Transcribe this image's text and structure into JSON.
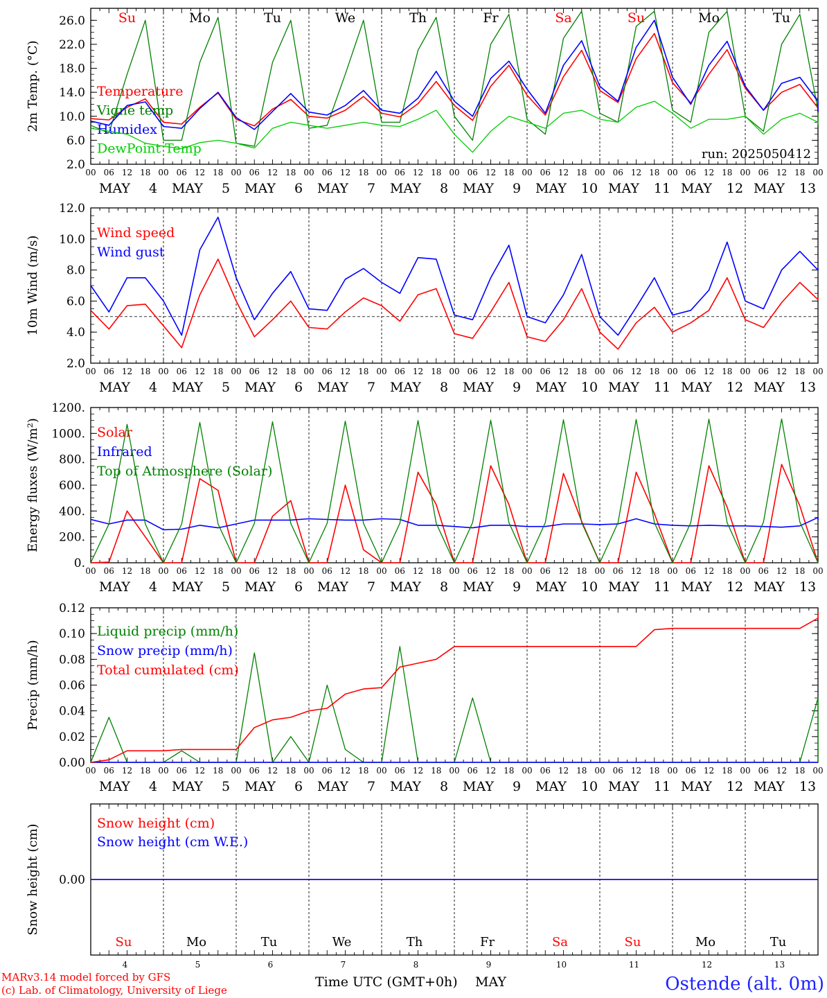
{
  "days": [
    {
      "dow": "Su",
      "month": "MAY",
      "day": "4",
      "weekend": true
    },
    {
      "dow": "Mo",
      "month": "MAY",
      "day": "5",
      "weekend": false
    },
    {
      "dow": "Tu",
      "month": "MAY",
      "day": "6",
      "weekend": false
    },
    {
      "dow": "We",
      "month": "MAY",
      "day": "7",
      "weekend": false
    },
    {
      "dow": "Th",
      "month": "MAY",
      "day": "8",
      "weekend": false
    },
    {
      "dow": "Fr",
      "month": "MAY",
      "day": "9",
      "weekend": false
    },
    {
      "dow": "Sa",
      "month": "MAY",
      "day": "10",
      "weekend": true
    },
    {
      "dow": "Su",
      "month": "MAY",
      "day": "11",
      "weekend": true
    },
    {
      "dow": "Mo",
      "month": "MAY",
      "day": "12",
      "weekend": false
    },
    {
      "dow": "Tu",
      "month": "MAY",
      "day": "13",
      "weekend": false
    }
  ],
  "hour_ticks": [
    "00",
    "06",
    "12",
    "18"
  ],
  "last_hour_tick": "00",
  "colors": {
    "red": "#ff0000",
    "blue": "#0000ff",
    "green": "#008000",
    "light_green": "#00cc00",
    "grid": "#000000",
    "title_blue": "#1f22ff"
  },
  "footer": {
    "model_line": "MARv3.14 model forced by GFS",
    "credit_line": "(c) Lab. of Climatology, University of Liege",
    "xlabel": "Time UTC (GMT+0h)",
    "month": "MAY",
    "station": "Ostende (alt. 0m)"
  },
  "chart_data": [
    {
      "id": "temp",
      "type": "line",
      "ylabel": "2m Temp. (°C)",
      "ylim": [
        2,
        28
      ],
      "yticks": [
        "2.0",
        "6.0",
        "10.0",
        "14.0",
        "18.0",
        "22.0",
        "26.0"
      ],
      "annotation": "run: 2025050412",
      "series": [
        {
          "name": "Temperature",
          "color": "red",
          "step_hours": 6,
          "values": [
            9.6,
            9.4,
            11.5,
            12.9,
            9.0,
            8.7,
            11.5,
            13.9,
            9.5,
            8.4,
            11.2,
            12.8,
            10.0,
            9.7,
            11.0,
            13.3,
            10.5,
            9.9,
            12.1,
            15.8,
            11.8,
            9.3,
            15.0,
            18.5,
            13.5,
            10.2,
            16.6,
            21.0,
            14.3,
            12.3,
            19.6,
            23.8,
            15.6,
            12.2,
            17.0,
            21.1,
            14.7,
            11.0,
            14.0,
            15.3,
            11.4,
            10.4
          ]
        },
        {
          "name": "Vigne temp",
          "color": "green",
          "step_hours": 6,
          "values": [
            8.5,
            7.2,
            17.0,
            26.0,
            6.0,
            6.0,
            19.0,
            26.5,
            5.5,
            5.0,
            19.0,
            26.0,
            8.0,
            8.5,
            17.0,
            26.0,
            9.0,
            9.0,
            21.0,
            26.5,
            10.0,
            6.0,
            22.0,
            27.0,
            9.5,
            7.0,
            23.0,
            27.5,
            10.5,
            9.0,
            25.0,
            27.5,
            11.0,
            9.0,
            24.0,
            27.5,
            10.0,
            7.5,
            22.0,
            27.0,
            11.0,
            8.5
          ]
        },
        {
          "name": "Humidex",
          "color": "blue",
          "step_hours": 6,
          "values": [
            9.2,
            8.5,
            11.8,
            12.4,
            8.3,
            8.0,
            11.3,
            14.0,
            9.8,
            7.8,
            10.8,
            13.8,
            10.7,
            10.2,
            11.8,
            14.3,
            11.0,
            10.5,
            13.0,
            17.5,
            12.5,
            10.0,
            16.3,
            19.2,
            14.5,
            10.5,
            18.5,
            22.6,
            15.0,
            12.5,
            21.5,
            26.0,
            16.5,
            12.0,
            18.5,
            22.5,
            15.0,
            11.0,
            15.5,
            16.5,
            12.5,
            10.7
          ]
        },
        {
          "name": "DewPoint Temp",
          "color": "light_green",
          "step_hours": 6,
          "values": [
            8.0,
            7.5,
            7.0,
            5.5,
            5.0,
            4.6,
            5.6,
            6.0,
            5.5,
            4.7,
            8.0,
            9.0,
            8.5,
            8.0,
            8.5,
            9.0,
            8.5,
            8.3,
            9.5,
            11.0,
            7.0,
            4.0,
            7.5,
            10.0,
            9.0,
            8.0,
            10.5,
            11.0,
            9.5,
            9.0,
            11.5,
            12.5,
            10.5,
            8.0,
            9.5,
            9.5,
            10.0,
            7.0,
            9.5,
            10.5,
            9.0,
            8.7
          ]
        }
      ]
    },
    {
      "id": "wind",
      "type": "line",
      "ylabel": "10m Wind (m/s)",
      "ylim": [
        2,
        12
      ],
      "yticks": [
        "2.0",
        "4.0",
        "6.0",
        "8.0",
        "10.0",
        "12.0"
      ],
      "reference_line": 5.0,
      "series": [
        {
          "name": "Wind speed",
          "color": "red",
          "step_hours": 6,
          "values": [
            5.4,
            4.2,
            5.7,
            5.8,
            4.4,
            3.0,
            6.4,
            8.7,
            6.0,
            3.7,
            4.8,
            6.0,
            4.3,
            4.2,
            5.3,
            6.2,
            5.7,
            4.7,
            6.4,
            6.8,
            3.9,
            3.6,
            5.3,
            7.2,
            3.7,
            3.4,
            4.8,
            6.8,
            4.0,
            2.9,
            4.6,
            5.6,
            4.0,
            4.6,
            5.4,
            7.5,
            4.8,
            4.3,
            5.9,
            7.2,
            6.1,
            6.3
          ]
        },
        {
          "name": "Wind gust",
          "color": "blue",
          "step_hours": 6,
          "values": [
            7.0,
            5.3,
            7.5,
            7.5,
            6.0,
            3.8,
            9.3,
            11.4,
            7.5,
            4.8,
            6.5,
            7.9,
            5.5,
            5.4,
            7.4,
            8.1,
            7.2,
            6.5,
            8.8,
            8.7,
            5.1,
            4.8,
            7.5,
            9.6,
            5.0,
            4.6,
            6.4,
            9.0,
            5.0,
            3.8,
            5.6,
            7.5,
            5.1,
            5.4,
            6.7,
            9.8,
            6.0,
            5.5,
            8.0,
            9.2,
            8.0,
            8.1
          ]
        }
      ]
    },
    {
      "id": "energy",
      "type": "line",
      "ylabel": "Energy fluxes (W/m²)",
      "ylim": [
        0,
        1200
      ],
      "yticks": [
        "0.",
        "200.",
        "400.",
        "600.",
        "800.",
        "1000.",
        "1200."
      ],
      "series": [
        {
          "name": "Solar",
          "color": "red",
          "step_hours": 6,
          "values": [
            0,
            5,
            400,
            200,
            0,
            0,
            650,
            560,
            0,
            0,
            360,
            480,
            0,
            0,
            600,
            100,
            0,
            0,
            700,
            450,
            0,
            0,
            750,
            450,
            0,
            0,
            690,
            320,
            0,
            0,
            700,
            380,
            0,
            0,
            750,
            430,
            0,
            0,
            760,
            440,
            0,
            0
          ]
        },
        {
          "name": "Infrared",
          "color": "blue",
          "step_hours": 6,
          "values": [
            335,
            300,
            330,
            330,
            255,
            260,
            290,
            270,
            300,
            330,
            330,
            330,
            340,
            335,
            330,
            330,
            340,
            335,
            290,
            290,
            280,
            270,
            290,
            290,
            280,
            280,
            300,
            300,
            295,
            300,
            340,
            300,
            290,
            285,
            290,
            285,
            285,
            280,
            275,
            285,
            350,
            330
          ]
        },
        {
          "name": "Top of Atmosphere (Solar)",
          "color": "green",
          "step_hours": 6,
          "values": [
            0,
            300,
            1070,
            300,
            0,
            300,
            1085,
            300,
            0,
            305,
            1090,
            305,
            0,
            305,
            1095,
            305,
            0,
            305,
            1100,
            305,
            0,
            310,
            1102,
            310,
            0,
            310,
            1105,
            310,
            0,
            310,
            1108,
            310,
            0,
            310,
            1110,
            310,
            0,
            315,
            1112,
            315,
            0,
            0
          ]
        }
      ]
    },
    {
      "id": "precip",
      "type": "line",
      "ylabel": "Precip (mm/h)",
      "ylim": [
        0,
        0.12
      ],
      "yticks": [
        "0.00",
        "0.02",
        "0.04",
        "0.06",
        "0.08",
        "0.10",
        "0.12"
      ],
      "series": [
        {
          "name": "Liquid precip (mm/h)",
          "color": "green",
          "step_hours": 6,
          "values": [
            0,
            0.035,
            0,
            0,
            0,
            0.009,
            0,
            0,
            0,
            0.085,
            0,
            0.02,
            0,
            0.06,
            0.01,
            0,
            0,
            0.09,
            0,
            0,
            0,
            0.05,
            0,
            0,
            0,
            0,
            0,
            0,
            0,
            0,
            0,
            0,
            0,
            0,
            0,
            0,
            0,
            0,
            0,
            0,
            0.05,
            0
          ]
        },
        {
          "name": "Snow precip (mm/h)",
          "color": "blue",
          "step_hours": 6,
          "values": [
            0,
            0,
            0,
            0,
            0,
            0,
            0,
            0,
            0,
            0,
            0,
            0,
            0,
            0,
            0,
            0,
            0,
            0,
            0,
            0,
            0,
            0,
            0,
            0,
            0,
            0,
            0,
            0,
            0,
            0,
            0,
            0,
            0,
            0,
            0,
            0,
            0,
            0,
            0,
            0,
            0,
            0
          ]
        },
        {
          "name": "Total cumulated (cm)",
          "color": "red",
          "step_hours": 6,
          "values": [
            0,
            0.002,
            0.009,
            0.009,
            0.009,
            0.01,
            0.01,
            0.01,
            0.01,
            0.027,
            0.033,
            0.035,
            0.04,
            0.042,
            0.053,
            0.057,
            0.058,
            0.074,
            0.077,
            0.08,
            0.09,
            0.09,
            0.09,
            0.09,
            0.09,
            0.09,
            0.09,
            0.09,
            0.09,
            0.09,
            0.09,
            0.103,
            0.104,
            0.104,
            0.104,
            0.104,
            0.104,
            0.104,
            0.104,
            0.104,
            0.112,
            0.117
          ]
        }
      ]
    },
    {
      "id": "snow",
      "type": "line",
      "ylabel": "Snow height (cm)",
      "ylim": [
        -1,
        1
      ],
      "yticks": [
        "0.00"
      ],
      "series": [
        {
          "name": "Snow height (cm)",
          "color": "red",
          "step_hours": 240,
          "values": [
            0,
            0
          ]
        },
        {
          "name": "Snow height (cm W.E.)",
          "color": "blue",
          "step_hours": 240,
          "values": [
            0,
            0
          ]
        }
      ]
    }
  ]
}
